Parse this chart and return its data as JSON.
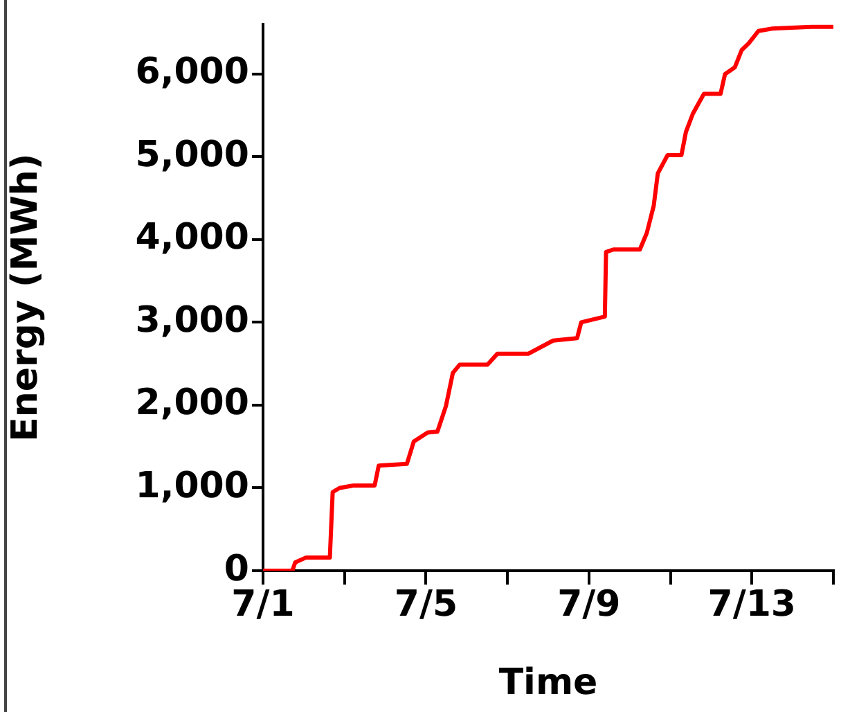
{
  "chart_data": {
    "type": "line",
    "xlabel": "Time",
    "ylabel": "Energy (MWh)",
    "xlim": [
      "--07-01",
      "--07-15"
    ],
    "ylim": [
      0,
      6600
    ],
    "xticks": [
      {
        "value": "--07-01",
        "label": "7/1"
      },
      {
        "value": "--07-03",
        "label": null
      },
      {
        "value": "--07-05",
        "label": "7/5"
      },
      {
        "value": "--07-07",
        "label": null
      },
      {
        "value": "--07-09",
        "label": "7/9"
      },
      {
        "value": "--07-11",
        "label": null
      },
      {
        "value": "--07-13",
        "label": "7/13"
      },
      {
        "value": "--07-15",
        "label": null
      }
    ],
    "yticks": [
      {
        "value": 0,
        "label": "0"
      },
      {
        "value": 1000,
        "label": "1,000"
      },
      {
        "value": 2000,
        "label": "2,000"
      },
      {
        "value": 3000,
        "label": "3,000"
      },
      {
        "value": 4000,
        "label": "4,000"
      },
      {
        "value": 5000,
        "label": "5,000"
      },
      {
        "value": 6000,
        "label": "6,000"
      }
    ],
    "grid": false,
    "legend": false,
    "marker": "none",
    "line_style": "solid",
    "series": [
      {
        "color": "#ff0000",
        "x": [
          "--07-01T00:00",
          "--07-01T17:17",
          "--07-01T18:58",
          "--07-02T01:26",
          "--07-02T15:22",
          "--07-02T17:02",
          "--07-02T21:07",
          "--07-03T05:31",
          "--07-03T17:46",
          "--07-03T20:10",
          "--07-04T12:43",
          "--07-04T16:48",
          "--07-05T00:58",
          "--07-05T06:43",
          "--07-05T11:46",
          "--07-05T15:50",
          "--07-05T19:55",
          "--07-06T12:14",
          "--07-06T18:00",
          "--07-07T12:14",
          "--07-08T02:53",
          "--07-08T17:02",
          "--07-08T19:26",
          "--07-09T09:22",
          "--07-09T10:05",
          "--07-09T14:24",
          "--07-10T06:00",
          "--07-10T10:05",
          "--07-10T14:10",
          "--07-10T16:34",
          "--07-10T22:19",
          "--07-11T06:29",
          "--07-11T09:07",
          "--07-11T13:12",
          "--07-11T19:41",
          "--07-12T05:31",
          "--07-12T08:10",
          "--07-12T13:55",
          "--07-12T18:00",
          "--07-12T22:05",
          "--07-13T03:50",
          "--07-13T12:00",
          "--07-14T11:02",
          "--07-15T00:00"
        ],
        "values": [
          0,
          0,
          100,
          160,
          160,
          950,
          1000,
          1030,
          1030,
          1270,
          1290,
          1560,
          1670,
          1680,
          1990,
          2390,
          2490,
          2490,
          2620,
          2620,
          2780,
          2810,
          3000,
          3070,
          3850,
          3880,
          3880,
          4080,
          4410,
          4800,
          5020,
          5020,
          5300,
          5520,
          5760,
          5760,
          6000,
          6080,
          6290,
          6370,
          6520,
          6550,
          6570,
          6570
        ]
      }
    ]
  }
}
